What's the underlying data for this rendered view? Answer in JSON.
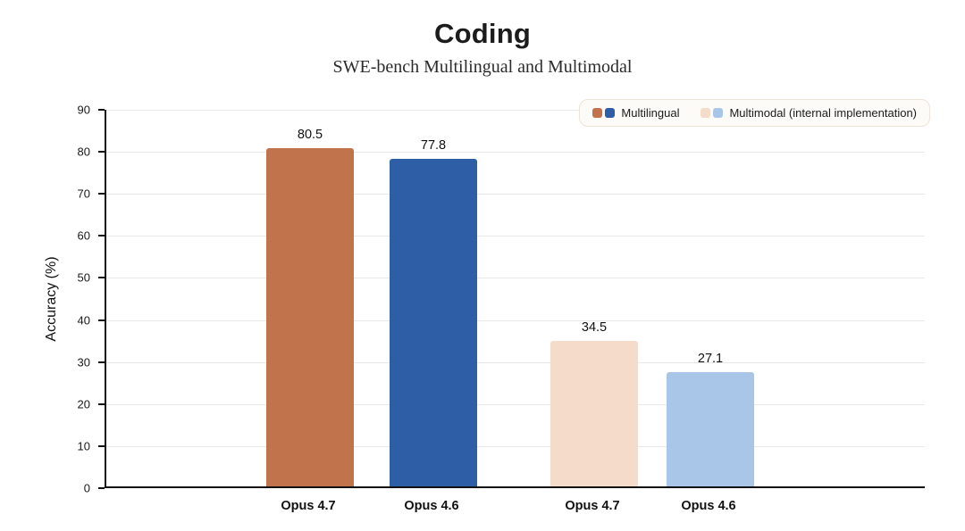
{
  "header": {
    "title": "Coding",
    "subtitle": "SWE-bench Multilingual and Multimodal"
  },
  "legend": [
    {
      "label": "Multilingual",
      "colors": [
        "#c1744c",
        "#2e5fa6"
      ]
    },
    {
      "label": "Multimodal (internal implementation)",
      "colors": [
        "#f5dbc9",
        "#a9c6e8"
      ]
    }
  ],
  "chart_data": {
    "type": "bar",
    "title": "Coding",
    "subtitle": "SWE-bench Multilingual and Multimodal",
    "xlabel": "",
    "ylabel": "Accuracy (%)",
    "categories": [
      "Opus 4.7",
      "Opus 4.6",
      "Opus 4.7",
      "Opus 4.6"
    ],
    "series_membership": [
      "Multilingual",
      "Multilingual",
      "Multimodal (internal implementation)",
      "Multimodal (internal implementation)"
    ],
    "values": [
      80.5,
      77.8,
      34.5,
      27.1
    ],
    "value_labels": [
      "80.5",
      "77.8",
      "34.5",
      "27.1"
    ],
    "colors": [
      "#c1744c",
      "#2e5fa6",
      "#f5dbc9",
      "#a9c6e8"
    ],
    "ylim": [
      0,
      90
    ],
    "ytick_step": 10,
    "grid": true,
    "legend_position": "top-right"
  }
}
